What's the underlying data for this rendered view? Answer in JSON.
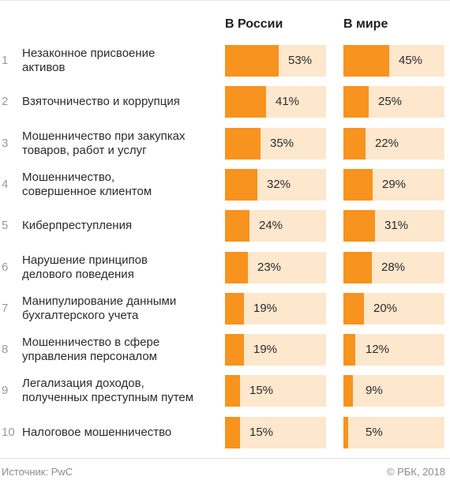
{
  "chart_data": {
    "type": "bar",
    "series": [
      {
        "name": "В России",
        "values": [
          53,
          41,
          35,
          32,
          24,
          23,
          19,
          19,
          15,
          15
        ]
      },
      {
        "name": "В мире",
        "values": [
          45,
          25,
          22,
          29,
          31,
          28,
          20,
          12,
          9,
          5
        ]
      }
    ],
    "categories": [
      {
        "rank": "1",
        "lines": [
          "Незаконное присвоение",
          "активов"
        ]
      },
      {
        "rank": "2",
        "lines": [
          "Взяточничество и коррупция"
        ]
      },
      {
        "rank": "3",
        "lines": [
          "Мошенничество при закупках",
          "товаров, работ и услуг"
        ]
      },
      {
        "rank": "4",
        "lines": [
          "Мошенничество,",
          "совершенное клиентом"
        ]
      },
      {
        "rank": "5",
        "lines": [
          "Киберпреступления"
        ]
      },
      {
        "rank": "6",
        "lines": [
          "Нарушение принципов",
          "делового поведения"
        ]
      },
      {
        "rank": "7",
        "lines": [
          "Манипулирование данными",
          "бухгалтерского учета"
        ]
      },
      {
        "rank": "8",
        "lines": [
          "Мошенничество в сфере",
          "управления персоналом"
        ]
      },
      {
        "rank": "9",
        "lines": [
          "Легализация доходов,",
          "полученных преступным путем"
        ]
      },
      {
        "rank": "10",
        "lines": [
          "Налоговое мошенничество"
        ]
      }
    ],
    "unit": "%",
    "xlim": [
      0,
      100
    ],
    "colors": {
      "fill": "#f7931e",
      "track": "#fde7cd"
    }
  },
  "footer": {
    "source": "Источник: PwC",
    "copyright": "© РБК, 2018"
  }
}
